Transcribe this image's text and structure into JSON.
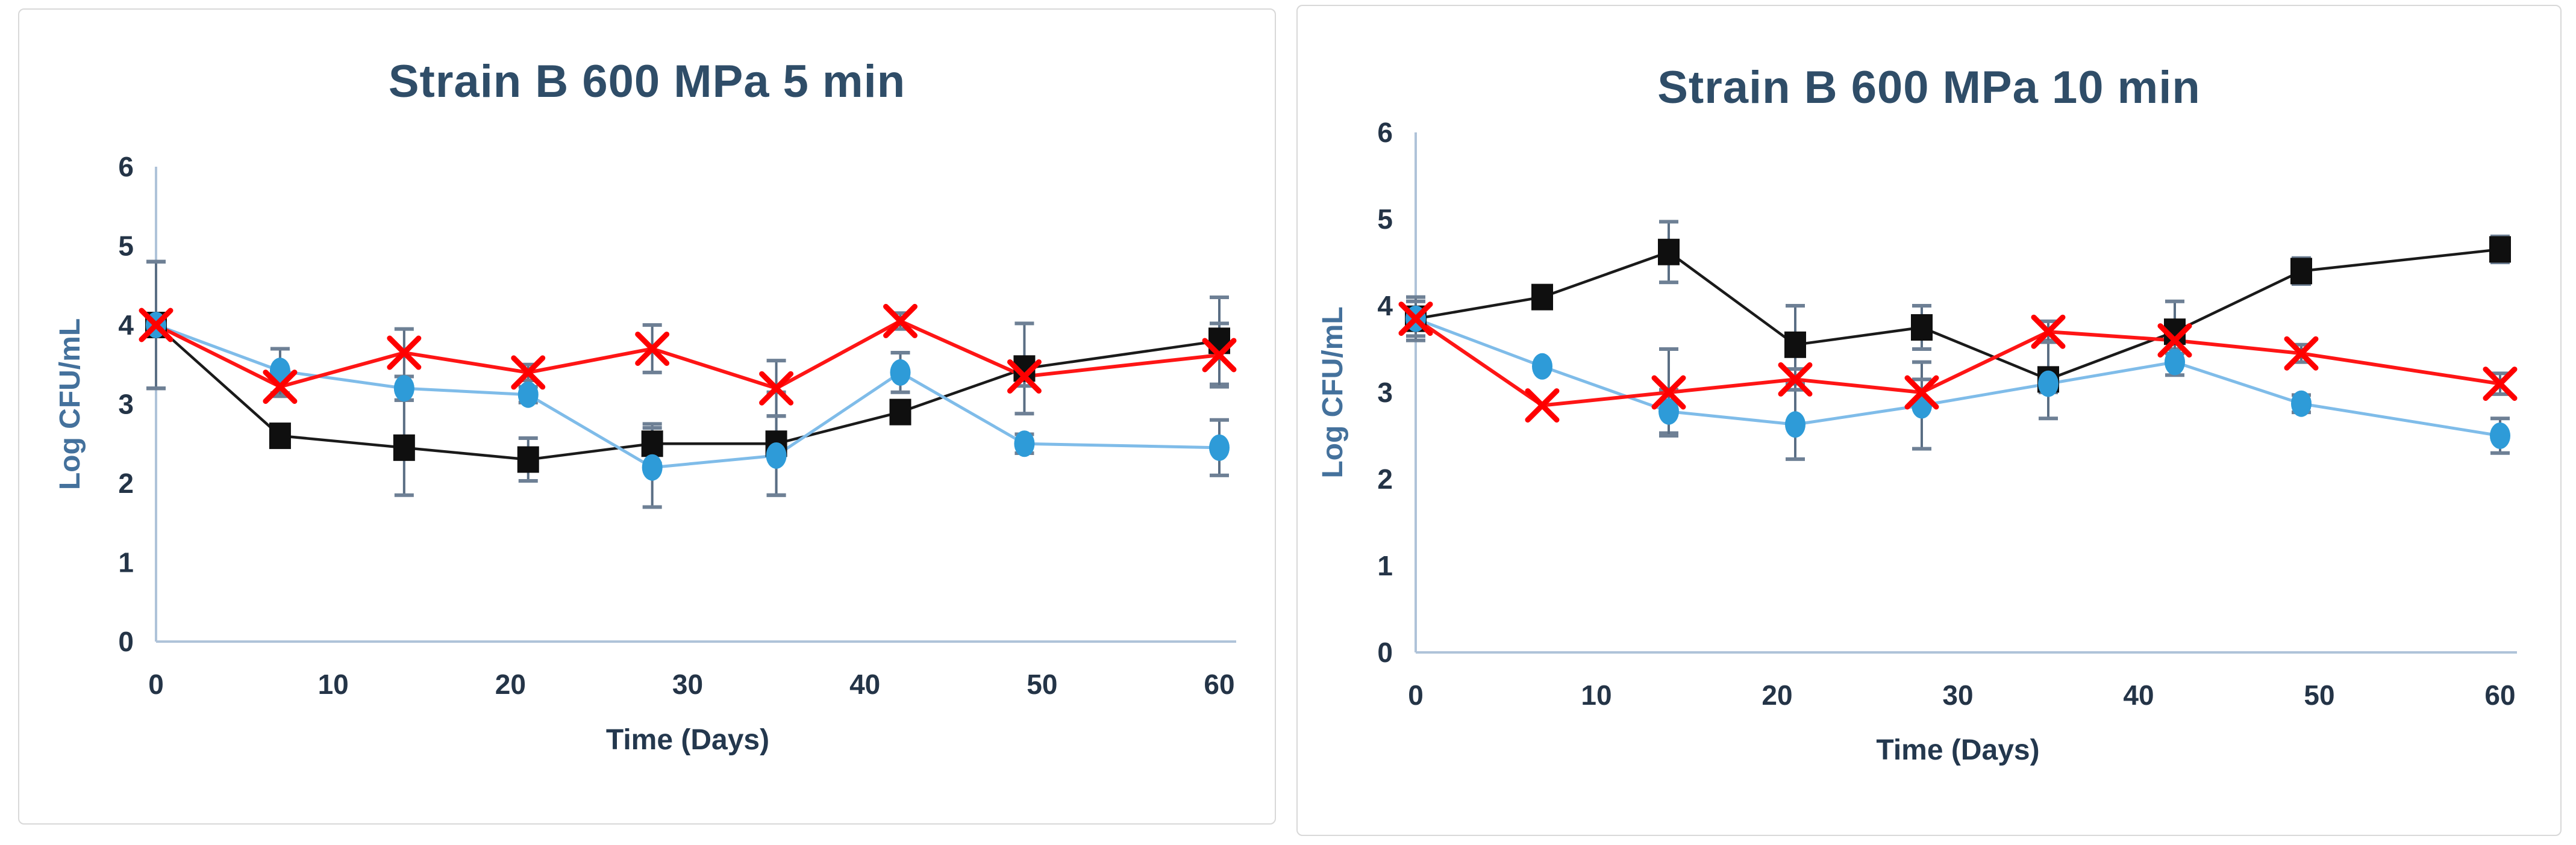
{
  "page": {
    "background": "#ffffff"
  },
  "chart_data": [
    {
      "type": "line",
      "title": "Strain B 600 MPa 5 min",
      "xlabel": "Time (Days)",
      "ylabel": "Log CFU/mL",
      "xlim": [
        0,
        60
      ],
      "ylim": [
        0,
        6
      ],
      "x_ticks": [
        0,
        10,
        20,
        30,
        40,
        50,
        60
      ],
      "y_ticks": [
        0,
        1,
        2,
        3,
        4,
        5,
        6
      ],
      "grid": false,
      "legend": "none",
      "x": [
        0,
        7,
        14,
        21,
        28,
        35,
        42,
        49,
        60
      ],
      "series": [
        {
          "name": "black-square-series",
          "marker": "square",
          "marker_color": "#0f0f0f",
          "line_color": "#1a1a1a",
          "values": [
            4.0,
            2.6,
            2.45,
            2.3,
            2.5,
            2.5,
            2.9,
            3.45,
            3.8
          ],
          "errors": [
            0.8,
            0.0,
            0.6,
            0.27,
            0.25,
            0.65,
            0.0,
            0.57,
            0.55
          ]
        },
        {
          "name": "blue-circle-series",
          "marker": "circle",
          "marker_color": "#2e9bd8",
          "line_color": "#7fbce9",
          "values": [
            4.0,
            3.42,
            3.2,
            3.12,
            2.2,
            2.35,
            3.4,
            2.5,
            2.45
          ],
          "errors": [
            0.8,
            0.28,
            0.15,
            0.1,
            0.5,
            0.5,
            0.25,
            0.12,
            0.35
          ]
        },
        {
          "name": "red-x-series",
          "marker": "x",
          "marker_color": "#fe0000",
          "line_color": "#fe1515",
          "values": [
            4.0,
            3.22,
            3.65,
            3.4,
            3.7,
            3.2,
            4.05,
            3.35,
            3.62
          ],
          "errors": [
            0.8,
            0.12,
            0.3,
            0.1,
            0.3,
            0.35,
            0.1,
            0.12,
            0.4
          ]
        }
      ]
    },
    {
      "type": "line",
      "title": "Strain B 600 MPa 10 min",
      "xlabel": "Time (Days)",
      "ylabel": "Log CFU/mL",
      "xlim": [
        0,
        60
      ],
      "ylim": [
        0,
        6
      ],
      "x_ticks": [
        0,
        10,
        20,
        30,
        40,
        50,
        60
      ],
      "y_ticks": [
        0,
        1,
        2,
        3,
        4,
        5,
        6
      ],
      "grid": false,
      "legend": "none",
      "x": [
        0,
        7,
        14,
        21,
        28,
        35,
        42,
        49,
        60
      ],
      "series": [
        {
          "name": "black-square-series",
          "marker": "square",
          "marker_color": "#0f0f0f",
          "line_color": "#1a1a1a",
          "values": [
            3.85,
            4.1,
            4.62,
            3.55,
            3.75,
            3.15,
            3.7,
            4.4,
            4.65
          ],
          "errors": [
            0.25,
            0.12,
            0.35,
            0.45,
            0.25,
            0.45,
            0.35,
            0.15,
            0.15
          ]
        },
        {
          "name": "blue-circle-series",
          "marker": "circle",
          "marker_color": "#2e9bd8",
          "line_color": "#7fbce9",
          "values": [
            3.85,
            3.3,
            2.78,
            2.63,
            2.85,
            3.1,
            3.35,
            2.87,
            2.5
          ],
          "errors": [
            0.0,
            0.0,
            0.25,
            0.4,
            0.5,
            0.1,
            0.15,
            0.1,
            0.2
          ]
        },
        {
          "name": "red-x-series",
          "marker": "x",
          "marker_color": "#fe0000",
          "line_color": "#fe1515",
          "values": [
            3.85,
            2.85,
            3.0,
            3.15,
            3.0,
            3.7,
            3.6,
            3.45,
            3.1
          ],
          "errors": [
            0.2,
            0.0,
            0.5,
            0.12,
            0.15,
            0.12,
            0.15,
            0.1,
            0.12
          ]
        }
      ]
    }
  ]
}
